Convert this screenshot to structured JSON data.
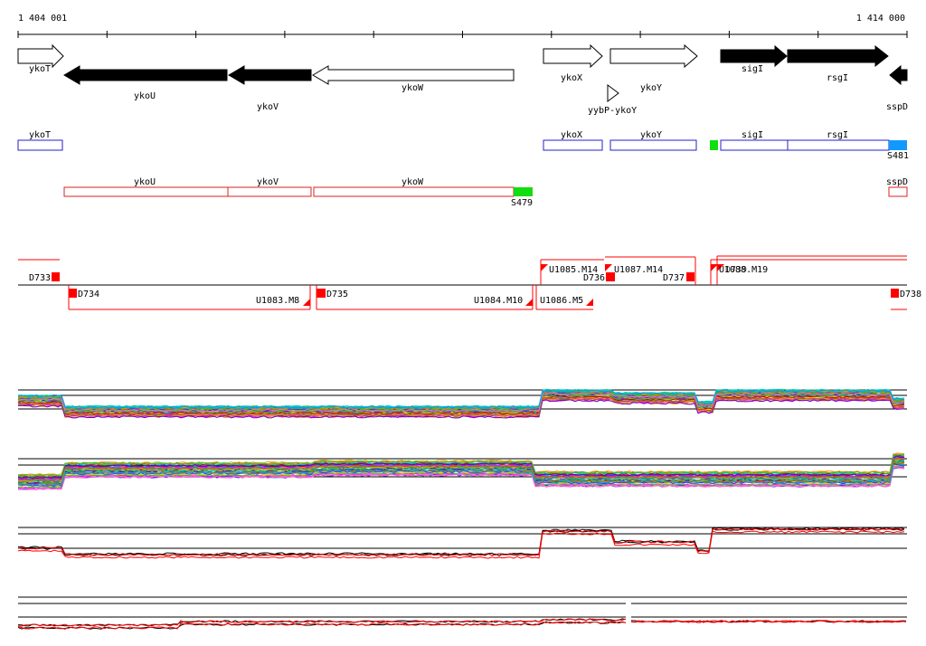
{
  "coords": {
    "start": "1 404 001",
    "end": "1 414 000"
  },
  "colors": {
    "gene_fill_dark": "#000000",
    "annotation_blue": "#2222cc",
    "annotation_red": "#dd2222",
    "highlight_green": "#11dd11",
    "highlight_blue": "#1199ff",
    "segment_red": "#ff0000"
  },
  "genes": [
    {
      "name": "ykoT",
      "strand": "+",
      "fill": "white"
    },
    {
      "name": "ykoU",
      "strand": "-",
      "fill": "black"
    },
    {
      "name": "ykoV",
      "strand": "-",
      "fill": "black"
    },
    {
      "name": "ykoW",
      "strand": "-",
      "fill": "white"
    },
    {
      "name": "ykoX",
      "strand": "+",
      "fill": "white"
    },
    {
      "name": "ykoY",
      "strand": "+",
      "fill": "white"
    },
    {
      "name": "yybP-ykoY",
      "strand": "+",
      "fill": "white"
    },
    {
      "name": "sigI",
      "strand": "+",
      "fill": "black"
    },
    {
      "name": "rsgI",
      "strand": "+",
      "fill": "black"
    },
    {
      "name": "sspD",
      "strand": "-",
      "fill": "black"
    }
  ],
  "blue_boxes": [
    {
      "name": "ykoT"
    },
    {
      "name": "ykoX"
    },
    {
      "name": "ykoY"
    },
    {
      "name": "sigI"
    },
    {
      "name": "rsgI"
    }
  ],
  "blue_markers": [
    {
      "label": "S481"
    }
  ],
  "red_boxes": [
    {
      "name": "ykoU"
    },
    {
      "name": "ykoV"
    },
    {
      "name": "ykoW"
    },
    {
      "name": "sspD"
    }
  ],
  "green_markers": [
    {
      "label": "S479"
    }
  ],
  "segments_upper": [
    {
      "label": "D733"
    },
    {
      "label": "U1085.M14"
    },
    {
      "label": "D736"
    },
    {
      "label": "U1087.M14"
    },
    {
      "label": "D737"
    },
    {
      "label": "U1088.M19"
    },
    {
      "label": "D739"
    }
  ],
  "segments_lower": [
    {
      "label": "D734"
    },
    {
      "label": "U1083.M8"
    },
    {
      "label": "D735"
    },
    {
      "label": "U1084.M10"
    },
    {
      "label": "U1086.M5"
    },
    {
      "label": "D738"
    }
  ]
}
